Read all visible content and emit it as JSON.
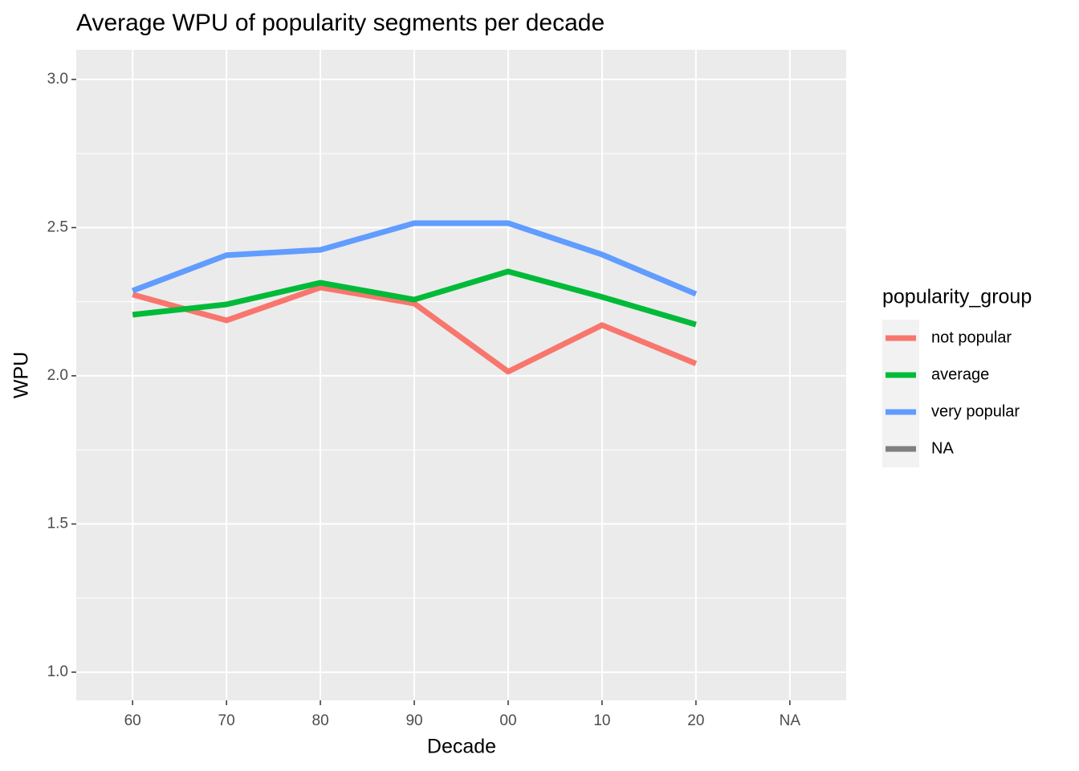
{
  "chart_data": {
    "type": "line",
    "title": "Average WPU of popularity segments per decade",
    "x_label": "Decade",
    "y_label": "WPU",
    "legend_title": "popularity_group",
    "categories": [
      "60",
      "70",
      "80",
      "90",
      "00",
      "10",
      "20",
      "NA"
    ],
    "series": [
      {
        "name": "not popular",
        "color": "#f8766d",
        "values": [
          2.274,
          2.187,
          2.298,
          2.244,
          2.014,
          2.171,
          2.041,
          null
        ]
      },
      {
        "name": "average",
        "color": "#00ba38",
        "values": [
          2.206,
          2.241,
          2.314,
          2.257,
          2.352,
          2.266,
          2.173,
          null
        ]
      },
      {
        "name": "very popular",
        "color": "#619cff",
        "values": [
          2.287,
          2.407,
          2.425,
          2.515,
          2.515,
          2.409,
          2.276,
          null
        ]
      },
      {
        "name": "NA",
        "color": "#7f7f7f",
        "values": [
          null,
          null,
          null,
          null,
          null,
          null,
          null,
          null
        ]
      }
    ],
    "ylim": [
      0.905,
      3.1
    ],
    "yticks": [
      {
        "value": 1,
        "label": "1.0"
      },
      1.5,
      {
        "value": 2,
        "label": "2.0"
      },
      2.5,
      {
        "value": 3,
        "label": "3.0"
      }
    ],
    "grid": true,
    "legend": "right"
  }
}
